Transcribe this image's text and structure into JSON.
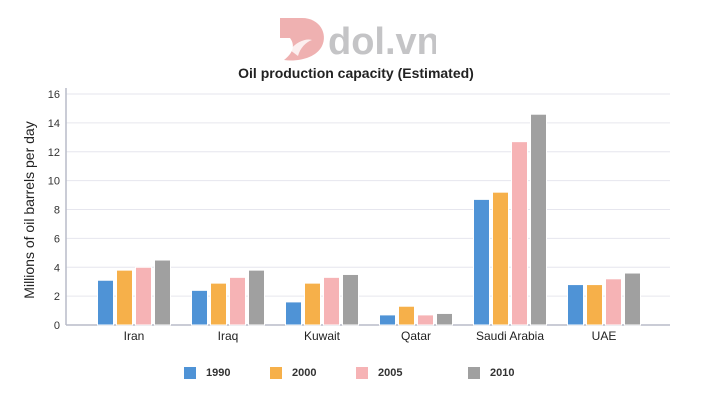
{
  "logo": {
    "text": "dol.vn"
  },
  "chart_data": {
    "type": "bar",
    "title": "Oil production capacity (Estimated)",
    "xlabel": "",
    "ylabel": "Millions of oil barrels per day",
    "ylim": [
      0,
      16
    ],
    "yticks": [
      0,
      2,
      4,
      6,
      8,
      10,
      12,
      14,
      16
    ],
    "grid": true,
    "legend_position": "bottom",
    "categories": [
      "Iran",
      "Iraq",
      "Kuwait",
      "Qatar",
      "Saudi Arabia",
      "UAE"
    ],
    "series": [
      {
        "name": "1990",
        "color": "#4f93d6",
        "values": [
          3.1,
          2.4,
          1.6,
          0.7,
          8.7,
          2.8
        ]
      },
      {
        "name": "2000",
        "color": "#f6b04a",
        "values": [
          3.8,
          2.9,
          2.9,
          1.3,
          9.2,
          2.8
        ]
      },
      {
        "name": "2005",
        "color": "#f6b3b5",
        "values": [
          4.0,
          3.3,
          3.3,
          0.7,
          12.7,
          3.2
        ]
      },
      {
        "name": "2010",
        "color": "#a0a0a0",
        "values": [
          4.5,
          3.8,
          3.5,
          0.8,
          14.6,
          3.6
        ]
      }
    ]
  }
}
